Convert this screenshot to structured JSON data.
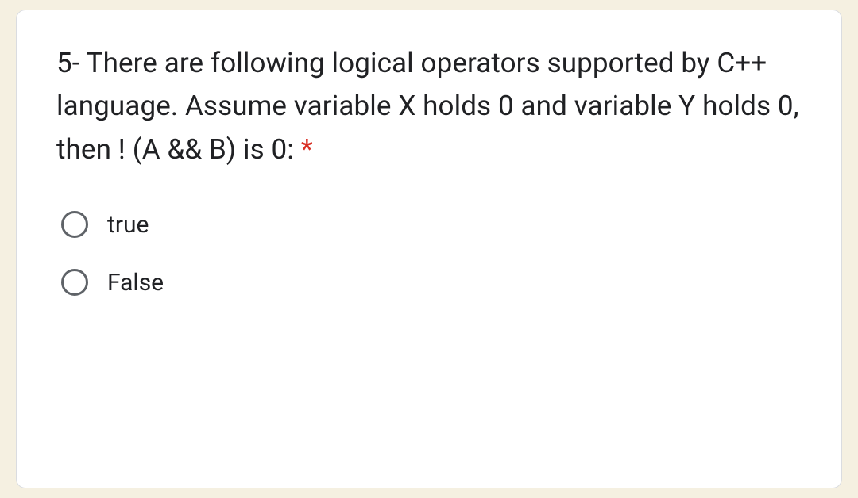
{
  "question": {
    "text": "5- There are following logical operators supported by C++ language. Assume variable X holds 0 and variable Y holds 0, then ! (A && B) is 0: ",
    "required_marker": "*"
  },
  "options": [
    {
      "label": "true"
    },
    {
      "label": "False"
    }
  ],
  "colors": {
    "page_bg": "#f5f0e1",
    "card_bg": "#ffffff",
    "card_border": "#dadce0",
    "text": "#202124",
    "required": "#d93025",
    "radio_border": "#5f6368"
  }
}
